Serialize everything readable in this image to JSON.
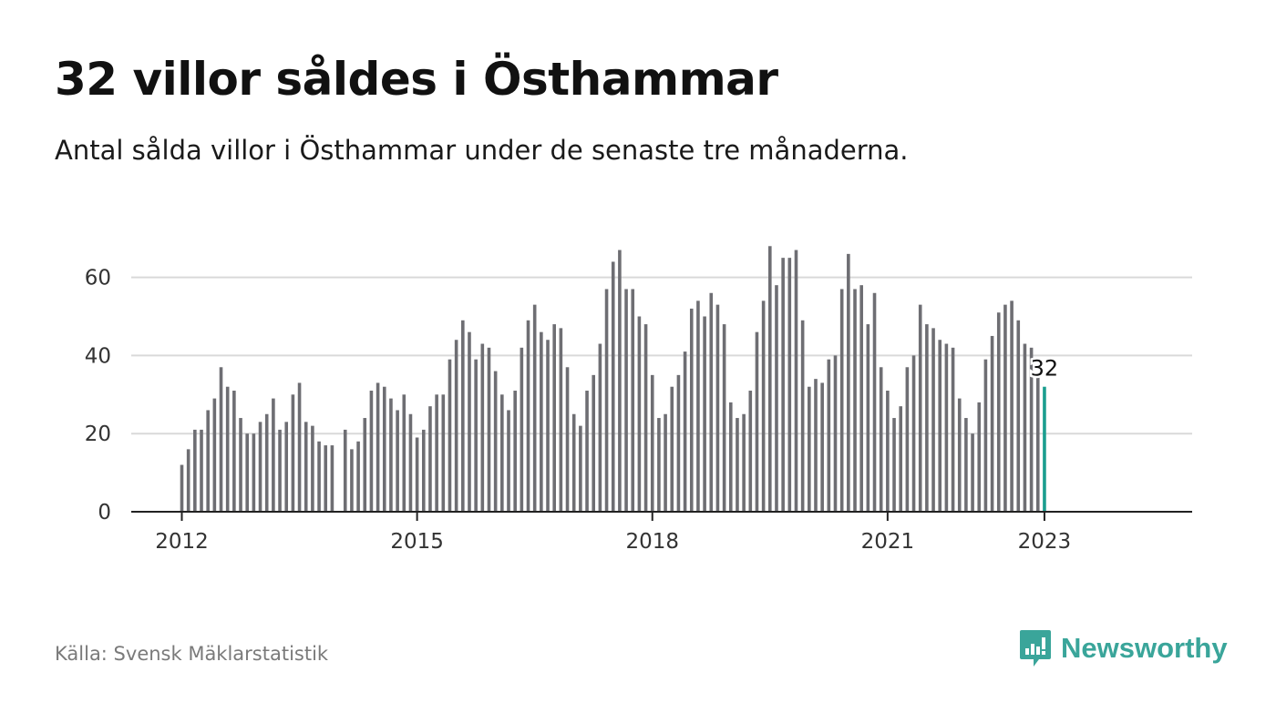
{
  "title": "32 villor såldes i Östhammar",
  "subtitle": "Antal sålda villor i Östhammar under de senaste tre månaderna.",
  "source": "Källa: Svensk Mäklarstatistik",
  "brand": {
    "name": "Newsworthy",
    "icon": "newsworthy-logo-icon",
    "color": "#3aa59a"
  },
  "colors": {
    "bar": "#6e6e73",
    "highlight": "#1a9e8f",
    "grid": "#d9d9d9",
    "axis": "#222222"
  },
  "chart_data": {
    "type": "bar",
    "x_unit": "month",
    "x_start": "2012-01",
    "x_ticks": [
      "2012",
      "2015",
      "2018",
      "2021",
      "2023"
    ],
    "y_ticks": [
      "0",
      "20",
      "40",
      "60"
    ],
    "ylim": [
      0,
      70
    ],
    "grid": true,
    "highlight_label": "32",
    "values": [
      12,
      16,
      21,
      21,
      26,
      29,
      37,
      32,
      31,
      24,
      20,
      20,
      23,
      25,
      29,
      21,
      23,
      30,
      33,
      23,
      22,
      18,
      17,
      17,
      null,
      21,
      16,
      18,
      24,
      31,
      33,
      32,
      29,
      26,
      30,
      25,
      19,
      21,
      27,
      30,
      30,
      39,
      44,
      49,
      46,
      39,
      43,
      42,
      36,
      30,
      26,
      31,
      42,
      49,
      53,
      46,
      44,
      48,
      47,
      37,
      25,
      22,
      31,
      35,
      43,
      57,
      64,
      67,
      57,
      57,
      50,
      48,
      35,
      24,
      25,
      32,
      35,
      41,
      52,
      54,
      50,
      56,
      53,
      48,
      28,
      24,
      25,
      31,
      46,
      54,
      68,
      58,
      65,
      65,
      67,
      49,
      32,
      34,
      33,
      39,
      40,
      57,
      66,
      57,
      58,
      48,
      56,
      37,
      31,
      24,
      27,
      37,
      40,
      53,
      48,
      47,
      44,
      43,
      42,
      29,
      24,
      20,
      28,
      39,
      45,
      51,
      53,
      54,
      49,
      43,
      42,
      35,
      32
    ]
  }
}
